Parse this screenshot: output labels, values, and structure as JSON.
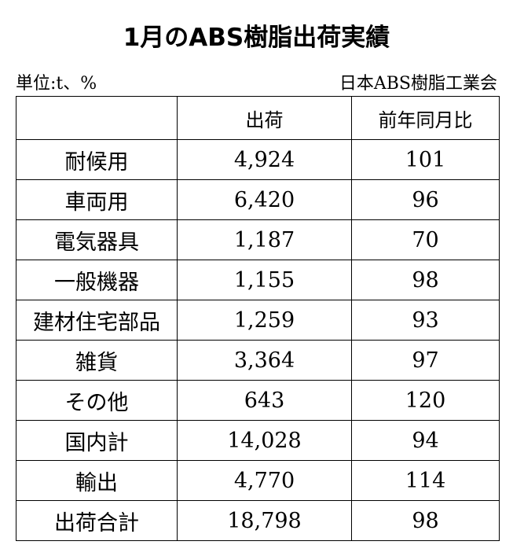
{
  "title": "1月のABS樹脂出荷実績",
  "unit": "単位:t、%",
  "source": "日本ABS樹脂工業会",
  "table": {
    "headers": [
      "",
      "出荷",
      "前年同月比"
    ],
    "rows": [
      [
        "耐候用",
        "4,924",
        "101"
      ],
      [
        "車両用",
        "6,420",
        "96"
      ],
      [
        "電気器具",
        "1,187",
        "70"
      ],
      [
        "一般機器",
        "1,155",
        "98"
      ],
      [
        "建材住宅部品",
        "1,259",
        "93"
      ],
      [
        "雑貨",
        "3,364",
        "97"
      ],
      [
        "その他",
        "643",
        "120"
      ],
      [
        "国内計",
        "14,028",
        "94"
      ],
      [
        "輸出",
        "4,770",
        "114"
      ],
      [
        "出荷合計",
        "18,798",
        "98"
      ]
    ]
  }
}
